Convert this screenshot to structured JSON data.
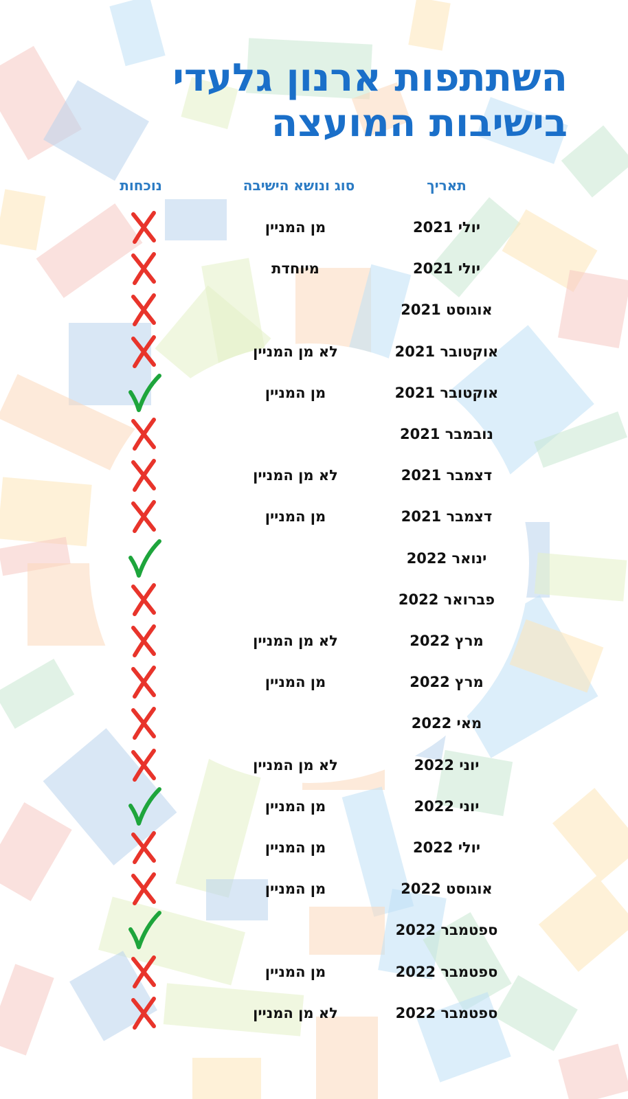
{
  "title": {
    "line1": "השתתפות ארנון גלעדי",
    "line2": "בישיבות המועצה"
  },
  "headers": {
    "date": "תאריך",
    "type": "סוג ונושא הישיבה",
    "attendance": "נוכחות"
  },
  "colors": {
    "title": "#1a6fc9",
    "header": "#2b7bc4",
    "absent": "#e8342b",
    "present": "#1ea53c"
  },
  "rows": [
    {
      "date": "יולי 2021",
      "type": "מן המניין",
      "attendance": "absent"
    },
    {
      "date": "יולי 2021",
      "type": "מיוחדת",
      "attendance": "absent"
    },
    {
      "date": "אוגוסט 2021",
      "type": "",
      "attendance": "absent"
    },
    {
      "date": "אוקטובר 2021",
      "type": "לא מן המניין",
      "attendance": "absent"
    },
    {
      "date": "אוקטובר 2021",
      "type": "מן המניין",
      "attendance": "present"
    },
    {
      "date": "נובמבר 2021",
      "type": "",
      "attendance": "absent"
    },
    {
      "date": "דצמבר 2021",
      "type": "לא מן המניין",
      "attendance": "absent"
    },
    {
      "date": "דצמבר 2021",
      "type": "מן המניין",
      "attendance": "absent"
    },
    {
      "date": "ינואר 2022",
      "type": "",
      "attendance": "present"
    },
    {
      "date": "פברואר 2022",
      "type": "",
      "attendance": "absent"
    },
    {
      "date": "מרץ 2022",
      "type": "לא מן המניין",
      "attendance": "absent"
    },
    {
      "date": "מרץ 2022",
      "type": "מן המניין",
      "attendance": "absent"
    },
    {
      "date": "מאי 2022",
      "type": "",
      "attendance": "absent"
    },
    {
      "date": "יוני 2022",
      "type": "לא מן המניין",
      "attendance": "absent"
    },
    {
      "date": "יוני 2022",
      "type": "מן המניין",
      "attendance": "present"
    },
    {
      "date": "יולי 2022",
      "type": "מן המניין",
      "attendance": "absent"
    },
    {
      "date": "אוגוסט 2022",
      "type": "מן המניין",
      "attendance": "absent"
    },
    {
      "date": "ספטמבר 2022",
      "type": "",
      "attendance": "present"
    },
    {
      "date": "ספטמבר 2022",
      "type": "מן המניין",
      "attendance": "absent"
    },
    {
      "date": "ספטמבר 2022",
      "type": "לא מן המניין",
      "attendance": "absent"
    }
  ]
}
